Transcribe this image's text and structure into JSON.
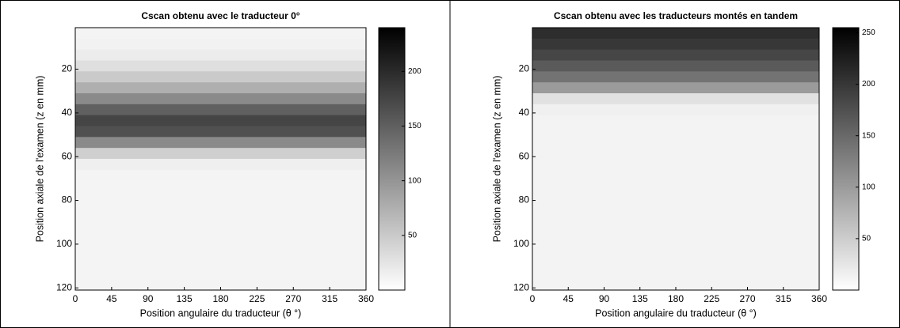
{
  "chart_data": [
    {
      "type": "heatmap",
      "title": "Cscan obtenu avec le traducteur 0°",
      "xlabel": "Position angulaire du traducteur (θ °)",
      "ylabel": "Position axiale de l'examen (z en mm)",
      "xlim": [
        0,
        360
      ],
      "xticks": [
        0,
        45,
        90,
        135,
        180,
        225,
        270,
        315,
        360
      ],
      "ylim": [
        1,
        121
      ],
      "yticks": [
        20,
        40,
        60,
        80,
        100,
        120
      ],
      "y_reversed": true,
      "z_edges": [
        1,
        6,
        11,
        16,
        21,
        26,
        31,
        36,
        41,
        46,
        51,
        56,
        61,
        66,
        71,
        76,
        81,
        86,
        91,
        96,
        101,
        106,
        111,
        116,
        121
      ],
      "values": [
        10,
        12,
        18,
        30,
        50,
        75,
        110,
        150,
        175,
        165,
        110,
        45,
        15,
        10,
        10,
        10,
        10,
        10,
        10,
        10,
        10,
        10,
        10,
        10
      ],
      "clim": [
        0,
        240
      ],
      "cticks": [
        50,
        100,
        150,
        200
      ]
    },
    {
      "type": "heatmap",
      "title": "Cscan obtenu avec les traducteurs montés en tandem",
      "xlabel": "Position angulaire du traducteur (θ °)",
      "ylabel": "Position axiale de l'examen (z en mm)",
      "xlim": [
        0,
        360
      ],
      "xticks": [
        0,
        45,
        90,
        135,
        180,
        225,
        270,
        315,
        360
      ],
      "ylim": [
        1,
        121
      ],
      "yticks": [
        20,
        40,
        60,
        80,
        100,
        120
      ],
      "y_reversed": true,
      "z_edges": [
        1,
        6,
        11,
        16,
        21,
        26,
        31,
        36,
        41,
        46,
        51,
        56,
        61,
        66,
        71,
        76,
        81,
        86,
        91,
        96,
        101,
        106,
        111,
        116,
        121
      ],
      "values": [
        210,
        200,
        185,
        165,
        140,
        100,
        30,
        15,
        12,
        12,
        12,
        12,
        12,
        12,
        12,
        12,
        12,
        12,
        12,
        12,
        12,
        12,
        12,
        12
      ],
      "clim": [
        0,
        255
      ],
      "cticks": [
        50,
        100,
        150,
        200,
        250
      ]
    }
  ]
}
